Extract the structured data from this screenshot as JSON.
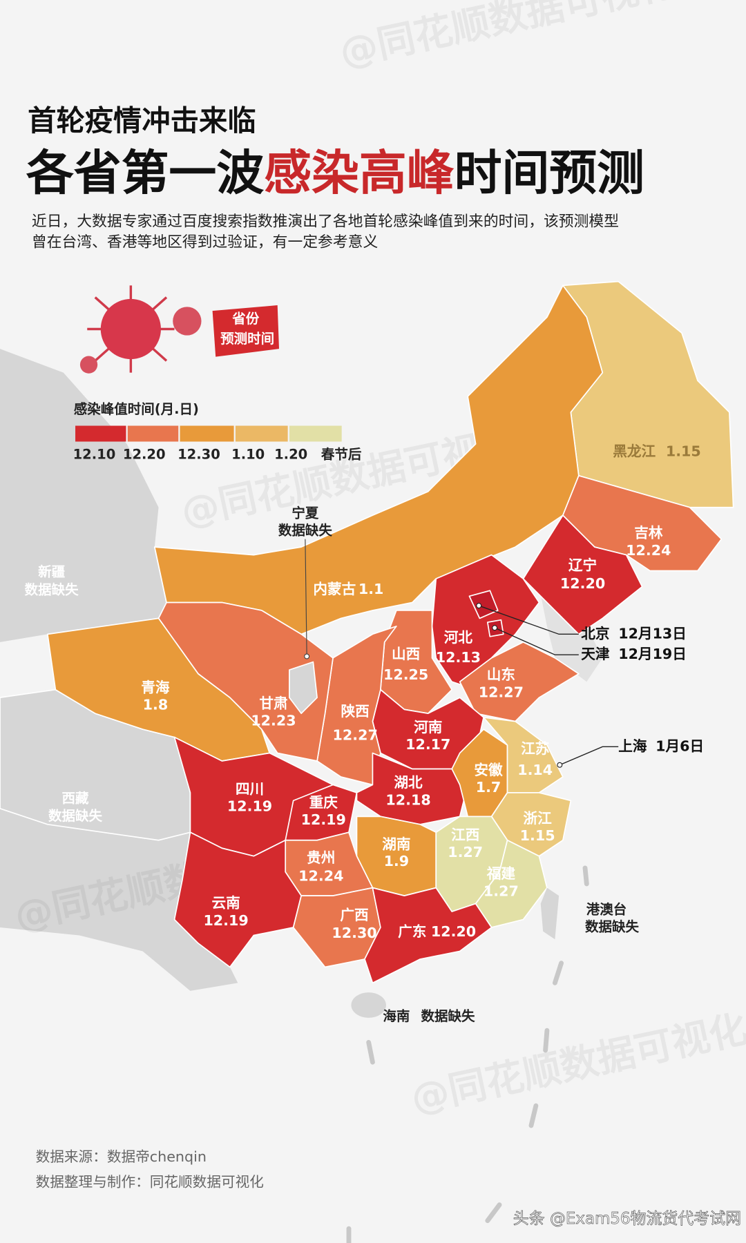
{
  "header": {
    "kicker": "首轮疫情冲击来临",
    "title": [
      "各省第一波",
      "感染高峰",
      "时间预测"
    ],
    "intro": [
      "近日，大数据专家通过百度搜索指数推演出了各地首轮感染峰值到来的时间，该预测模型",
      "曾在台湾、香港等地区得到过验证，有一定参考意义"
    ]
  },
  "badge": [
    "省份",
    "预测时间"
  ],
  "legend": {
    "title": "感染峰值时间(月.日)",
    "labels": [
      "12.10",
      "12.20",
      "12.30",
      "1.10",
      "1.20",
      "春节后"
    ]
  },
  "regions": [
    {
      "name": "黑龙江",
      "date": "1.15"
    },
    {
      "name": "吉林",
      "date": "12.24"
    },
    {
      "name": "辽宁",
      "date": "12.20"
    },
    {
      "name": "内蒙古",
      "date": "1.1"
    },
    {
      "name": "河北",
      "date": "12.13"
    },
    {
      "name": "山西",
      "date": "12.25"
    },
    {
      "name": "山东",
      "date": "12.27"
    },
    {
      "name": "青海",
      "date": "1.8"
    },
    {
      "name": "甘肃",
      "date": "12.23"
    },
    {
      "name": "陕西",
      "date": "12.27"
    },
    {
      "name": "河南",
      "date": "12.17"
    },
    {
      "name": "江苏",
      "date": "1.14"
    },
    {
      "name": "安徽",
      "date": "1.7"
    },
    {
      "name": "四川",
      "date": "12.19"
    },
    {
      "name": "重庆",
      "date": "12.19"
    },
    {
      "name": "湖北",
      "date": "12.18"
    },
    {
      "name": "浙江",
      "date": "1.15"
    },
    {
      "name": "湖南",
      "date": "1.9"
    },
    {
      "name": "江西",
      "date": "1.27"
    },
    {
      "name": "福建",
      "date": "1.27"
    },
    {
      "name": "贵州",
      "date": "12.24"
    },
    {
      "name": "云南",
      "date": "12.19"
    },
    {
      "name": "广西",
      "date": "12.30"
    },
    {
      "name": "广东",
      "date": "12.20"
    }
  ],
  "missing_data": [
    {
      "name": "宁夏",
      "note": "数据缺失"
    },
    {
      "name": "新疆",
      "note": "数据缺失"
    },
    {
      "name": "西藏",
      "note": "数据缺失"
    },
    {
      "name": "港澳台",
      "note": "数据缺失"
    },
    {
      "name": "海南",
      "note": "数据缺失"
    }
  ],
  "callouts": [
    {
      "name": "北京",
      "date": "12月13日"
    },
    {
      "name": "天津",
      "date": "12月19日"
    },
    {
      "name": "上海",
      "date": "1月6日"
    }
  ],
  "footer": {
    "source": "数据来源：数据帝chenqin",
    "producer": "数据整理与制作：同花顺数据可视化"
  },
  "watermarks": [
    "@同花顺数据可视化",
    "头条 @Exam56物流货代考试网"
  ]
}
